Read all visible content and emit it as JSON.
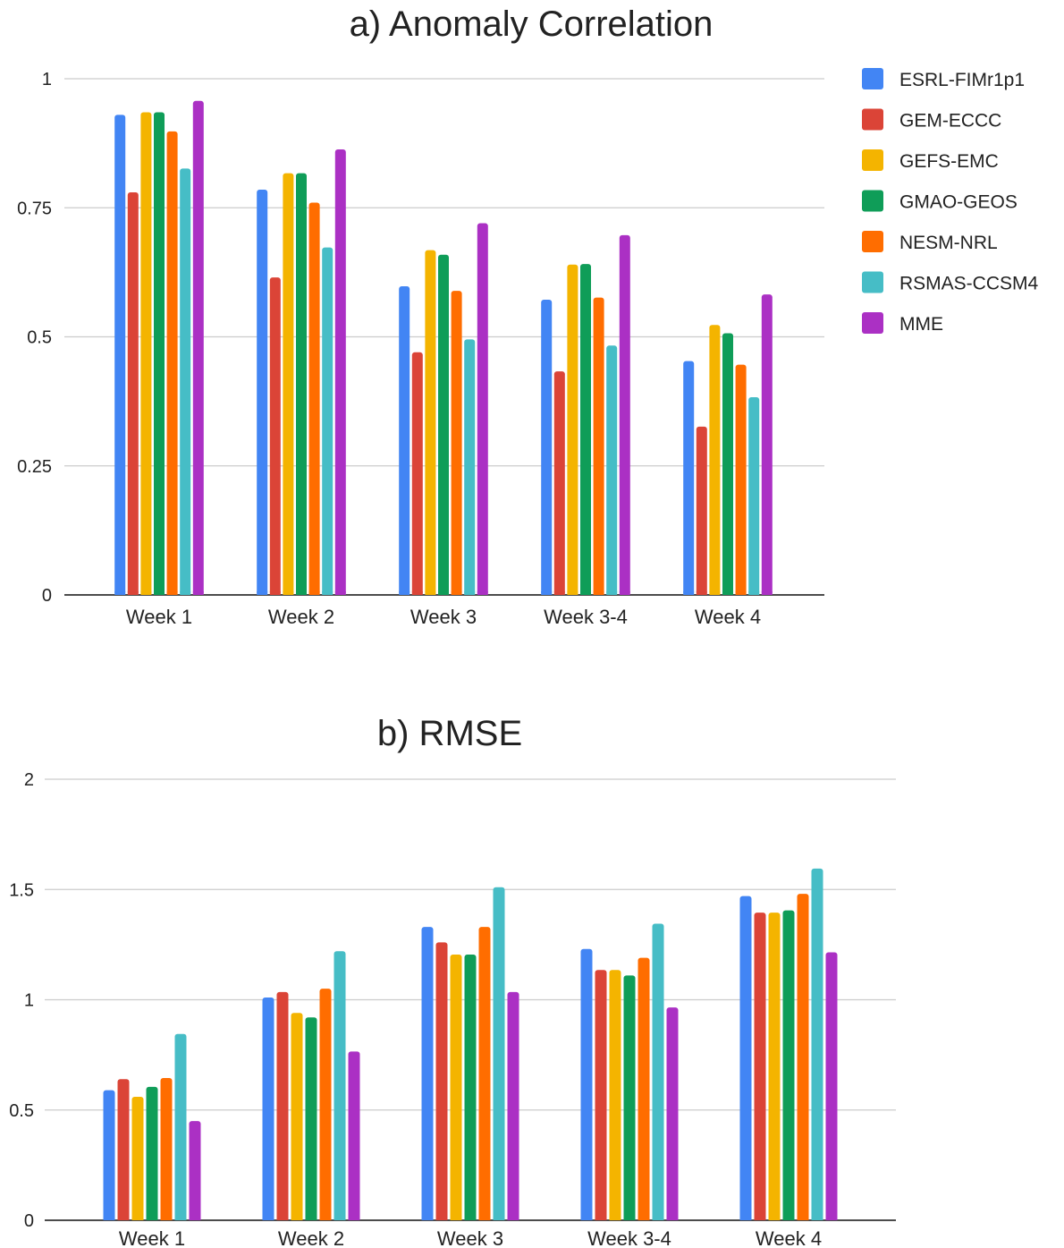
{
  "legend": [
    {
      "name": "ESRL-FIMr1p1",
      "color": "#4285F4"
    },
    {
      "name": "GEM-ECCC",
      "color": "#DB4437"
    },
    {
      "name": "GEFS-EMC",
      "color": "#F4B400"
    },
    {
      "name": "GMAO-GEOS",
      "color": "#0F9D58"
    },
    {
      "name": "NESM-NRL",
      "color": "#FF6D00"
    },
    {
      "name": "RSMAS-CCSM4",
      "color": "#46BDC6"
    },
    {
      "name": "MME",
      "color": "#AB30C4"
    }
  ],
  "chart_data": [
    {
      "type": "bar",
      "title": "a) Anomaly Correlation",
      "xlabel": "",
      "ylabel": "",
      "categories": [
        "Week 1",
        "Week 2",
        "Week 3",
        "Week 3-4",
        "Week 4"
      ],
      "ylim": [
        0,
        1
      ],
      "yticks": [
        0,
        0.25,
        0.5,
        0.75,
        1
      ],
      "ytick_labels": [
        "0",
        "0.25",
        "0.5",
        "0.75",
        "1"
      ],
      "grid": true,
      "legend_position": "right",
      "series": [
        {
          "name": "ESRL-FIMr1p1",
          "values": [
            0.93,
            0.785,
            0.598,
            0.572,
            0.453
          ]
        },
        {
          "name": "GEM-ECCC",
          "values": [
            0.78,
            0.615,
            0.47,
            0.433,
            0.326
          ]
        },
        {
          "name": "GEFS-EMC",
          "values": [
            0.935,
            0.817,
            0.668,
            0.64,
            0.523
          ]
        },
        {
          "name": "GMAO-GEOS",
          "values": [
            0.935,
            0.817,
            0.659,
            0.641,
            0.507
          ]
        },
        {
          "name": "NESM-NRL",
          "values": [
            0.898,
            0.76,
            0.589,
            0.576,
            0.446
          ]
        },
        {
          "name": "RSMAS-CCSM4",
          "values": [
            0.826,
            0.673,
            0.495,
            0.483,
            0.383
          ]
        },
        {
          "name": "MME",
          "values": [
            0.957,
            0.863,
            0.72,
            0.697,
            0.582
          ]
        }
      ]
    },
    {
      "type": "bar",
      "title": "b) RMSE",
      "xlabel": "",
      "ylabel": "",
      "categories": [
        "Week 1",
        "Week 2",
        "Week 3",
        "Week 3-4",
        "Week 4"
      ],
      "ylim": [
        0,
        2
      ],
      "yticks": [
        0,
        0.5,
        1,
        1.5,
        2
      ],
      "ytick_labels": [
        "0",
        "0.5",
        "1",
        "1.5",
        "2"
      ],
      "grid": true,
      "legend_position": "none",
      "series": [
        {
          "name": "ESRL-FIMr1p1",
          "values": [
            0.59,
            1.01,
            1.33,
            1.23,
            1.47
          ]
        },
        {
          "name": "GEM-ECCC",
          "values": [
            0.64,
            1.035,
            1.26,
            1.135,
            1.395
          ]
        },
        {
          "name": "GEFS-EMC",
          "values": [
            0.56,
            0.94,
            1.205,
            1.135,
            1.395
          ]
        },
        {
          "name": "GMAO-GEOS",
          "values": [
            0.605,
            0.92,
            1.205,
            1.11,
            1.405
          ]
        },
        {
          "name": "NESM-NRL",
          "values": [
            0.645,
            1.05,
            1.33,
            1.19,
            1.48
          ]
        },
        {
          "name": "RSMAS-CCSM4",
          "values": [
            0.845,
            1.22,
            1.51,
            1.345,
            1.595
          ]
        },
        {
          "name": "MME",
          "values": [
            0.45,
            0.765,
            1.035,
            0.965,
            1.215
          ]
        }
      ]
    }
  ]
}
